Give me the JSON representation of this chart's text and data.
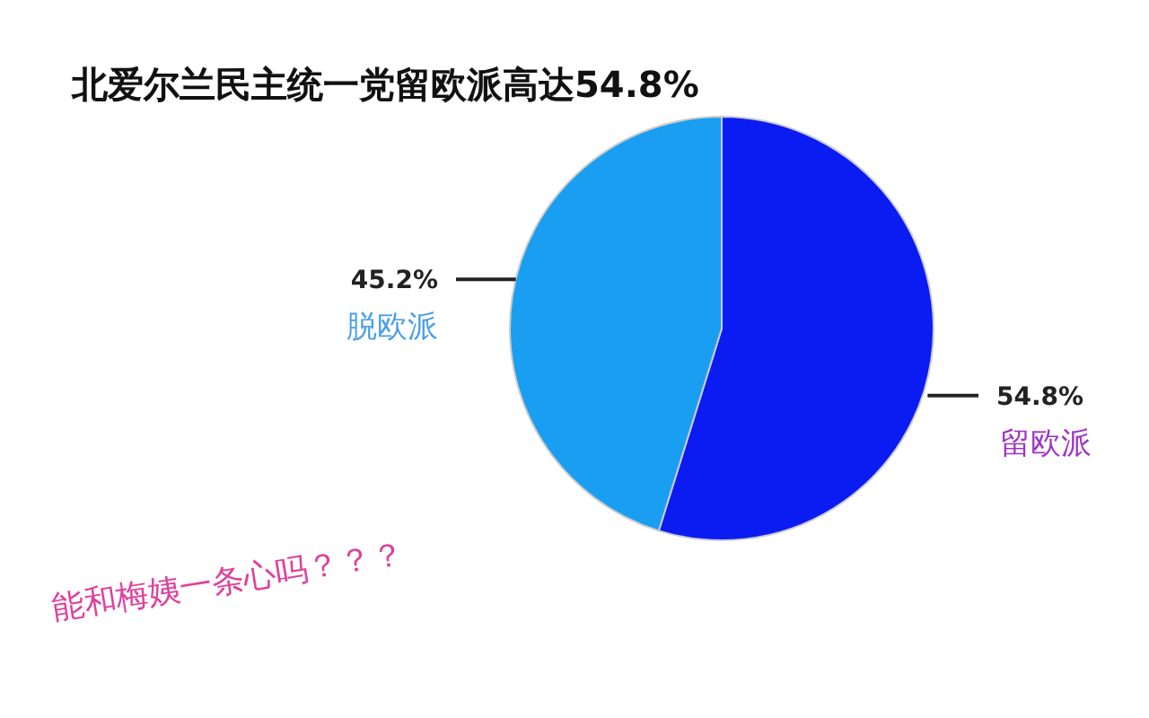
{
  "chart_data": {
    "type": "pie",
    "title": "北爱尔兰民主统一党留欧派高达54.8%",
    "categories": [
      "留欧派",
      "脱欧派"
    ],
    "values": [
      54.8,
      45.2
    ],
    "colors": [
      "#0a1cf2",
      "#1a9ef2"
    ],
    "value_labels": [
      "54.8%",
      "45.2%"
    ],
    "annotations": [
      "能和梅姨一条心吗？？？"
    ]
  }
}
